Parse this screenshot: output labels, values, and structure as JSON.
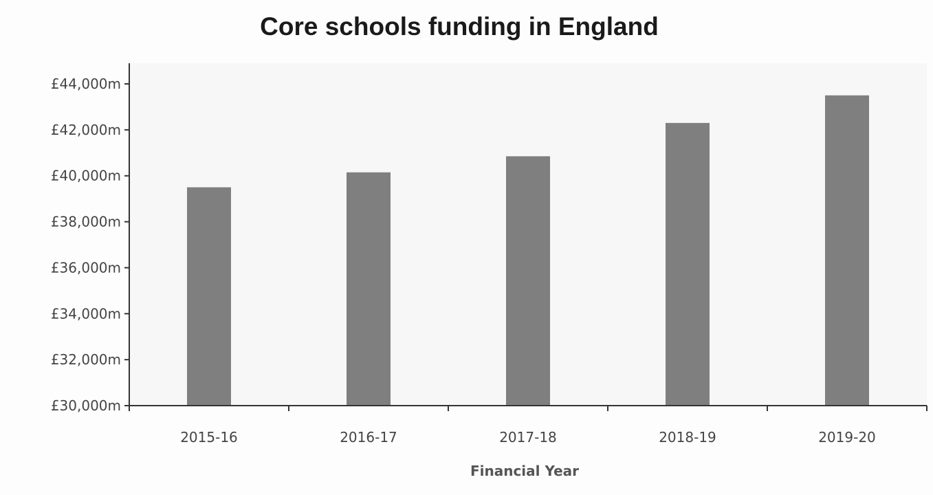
{
  "chart_data": {
    "type": "bar",
    "title": "Core schools funding in England",
    "xlabel": "Financial Year",
    "ylabel": "",
    "categories": [
      "2015-16",
      "2016-17",
      "2017-18",
      "2018-19",
      "2019-20"
    ],
    "values": [
      39500,
      40150,
      40850,
      42300,
      43500
    ],
    "ylim": [
      30000,
      44000
    ],
    "y_ticks": [
      30000,
      32000,
      34000,
      36000,
      38000,
      40000,
      42000,
      44000
    ],
    "y_tick_labels": [
      "£30,000m",
      "£32,000m",
      "£34,000m",
      "£36,000m",
      "£38,000m",
      "£40,000m",
      "£42,000m",
      "£44,000m"
    ],
    "bar_color": "#7f7f7f",
    "axis_color": "#333333",
    "grid": false,
    "legend": "none"
  }
}
